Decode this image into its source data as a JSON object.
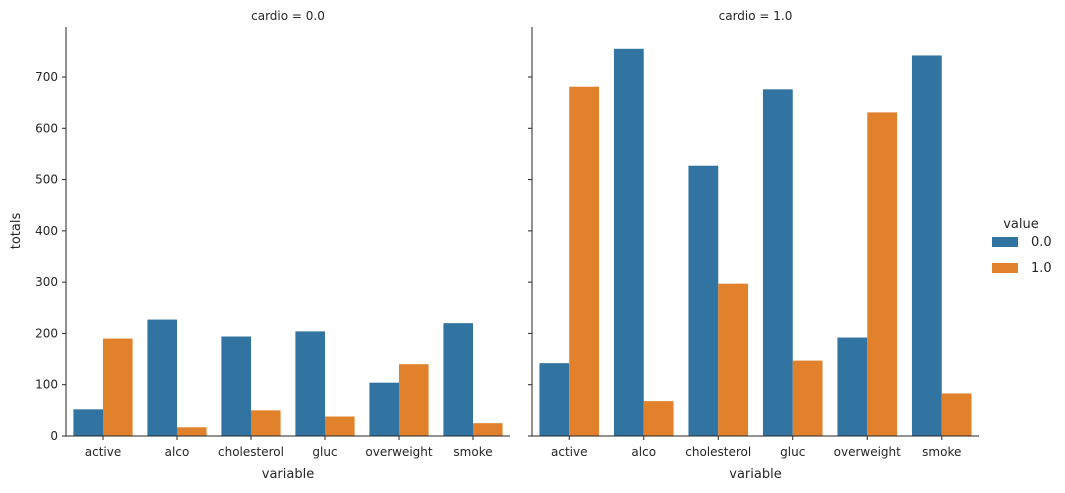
{
  "chart_data": {
    "type": "bar",
    "facet_variable": "cardio",
    "facets": [
      {
        "title": "cardio = 0.0",
        "categories": [
          "active",
          "alco",
          "cholesterol",
          "gluc",
          "overweight",
          "smoke"
        ],
        "series": [
          {
            "name": "0.0",
            "values": [
              52,
              227,
              194,
              204,
              104,
              220
            ]
          },
          {
            "name": "1.0",
            "values": [
              190,
              17,
              50,
              38,
              140,
              25
            ]
          }
        ]
      },
      {
        "title": "cardio = 1.0",
        "categories": [
          "active",
          "alco",
          "cholesterol",
          "gluc",
          "overweight",
          "smoke"
        ],
        "series": [
          {
            "name": "0.0",
            "values": [
              142,
              755,
              527,
              676,
              192,
              742
            ]
          },
          {
            "name": "1.0",
            "values": [
              681,
              68,
              297,
              147,
              631,
              83
            ]
          }
        ]
      }
    ],
    "xlabel": "variable",
    "ylabel": "totals",
    "yticks": [
      0,
      100,
      200,
      300,
      400,
      500,
      600,
      700
    ],
    "ylim": [
      0,
      793
    ],
    "grid": false,
    "legend": {
      "title": "value",
      "placement": "right",
      "entries": [
        "0.0",
        "1.0"
      ]
    },
    "colors": {
      "0.0": "#3274a1",
      "1.0": "#e1812c"
    }
  }
}
